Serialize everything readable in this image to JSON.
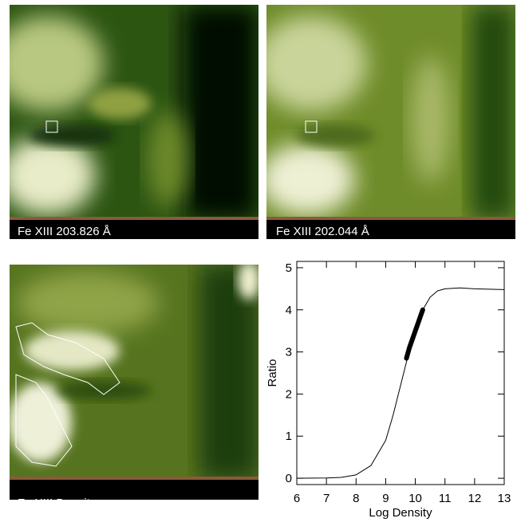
{
  "panels": [
    {
      "label": "Fe XIII 203.826 Å"
    },
    {
      "label": "Fe XIII 202.044 Å"
    },
    {
      "label": "Fe XIII Density"
    }
  ],
  "chart_data": {
    "type": "line",
    "xlabel": "Log Density",
    "ylabel": "Ratio",
    "xlim": [
      6,
      13
    ],
    "ylim": [
      -0.15,
      5.15
    ],
    "xticks": [
      6,
      7,
      8,
      9,
      10,
      11,
      12,
      13
    ],
    "yticks": [
      0,
      1,
      2,
      3,
      4,
      5
    ],
    "series": [
      {
        "color": "#000000",
        "width": 1,
        "x": [
          6,
          7,
          7.5,
          8,
          8.5,
          9,
          9.25,
          9.5,
          9.75,
          10,
          10.25,
          10.5,
          10.75,
          11,
          11.5,
          12,
          12.5,
          13
        ],
        "values": [
          0,
          0.005,
          0.02,
          0.08,
          0.3,
          0.9,
          1.5,
          2.2,
          2.9,
          3.5,
          4.0,
          4.3,
          4.45,
          4.5,
          4.52,
          4.5,
          4.49,
          4.48
        ]
      },
      {
        "color": "#000000",
        "width": 6,
        "x": [
          9.7,
          9.8,
          9.9,
          10.0,
          10.1,
          10.2,
          10.25
        ],
        "values": [
          2.85,
          3.1,
          3.3,
          3.5,
          3.7,
          3.9,
          4.0
        ]
      }
    ]
  }
}
